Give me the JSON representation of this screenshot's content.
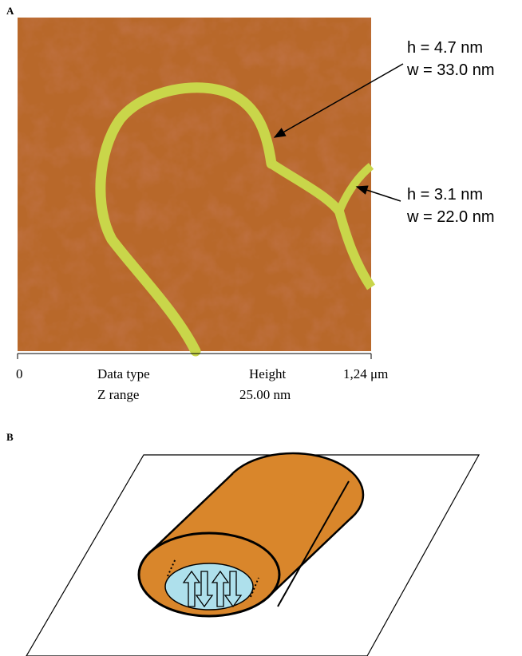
{
  "panel_a": {
    "label": "A",
    "annotations": [
      {
        "h": "h = 4.7 nm",
        "w": "w = 33.0 nm"
      },
      {
        "h": "h = 3.1 nm",
        "w": "w = 22.0 nm"
      }
    ],
    "axis": {
      "start": "0",
      "end": "1,24 μm"
    },
    "info": [
      [
        "Data type",
        "Height"
      ],
      [
        "Z range",
        "25.00 nm"
      ]
    ]
  },
  "panel_b": {
    "label": "B"
  }
}
